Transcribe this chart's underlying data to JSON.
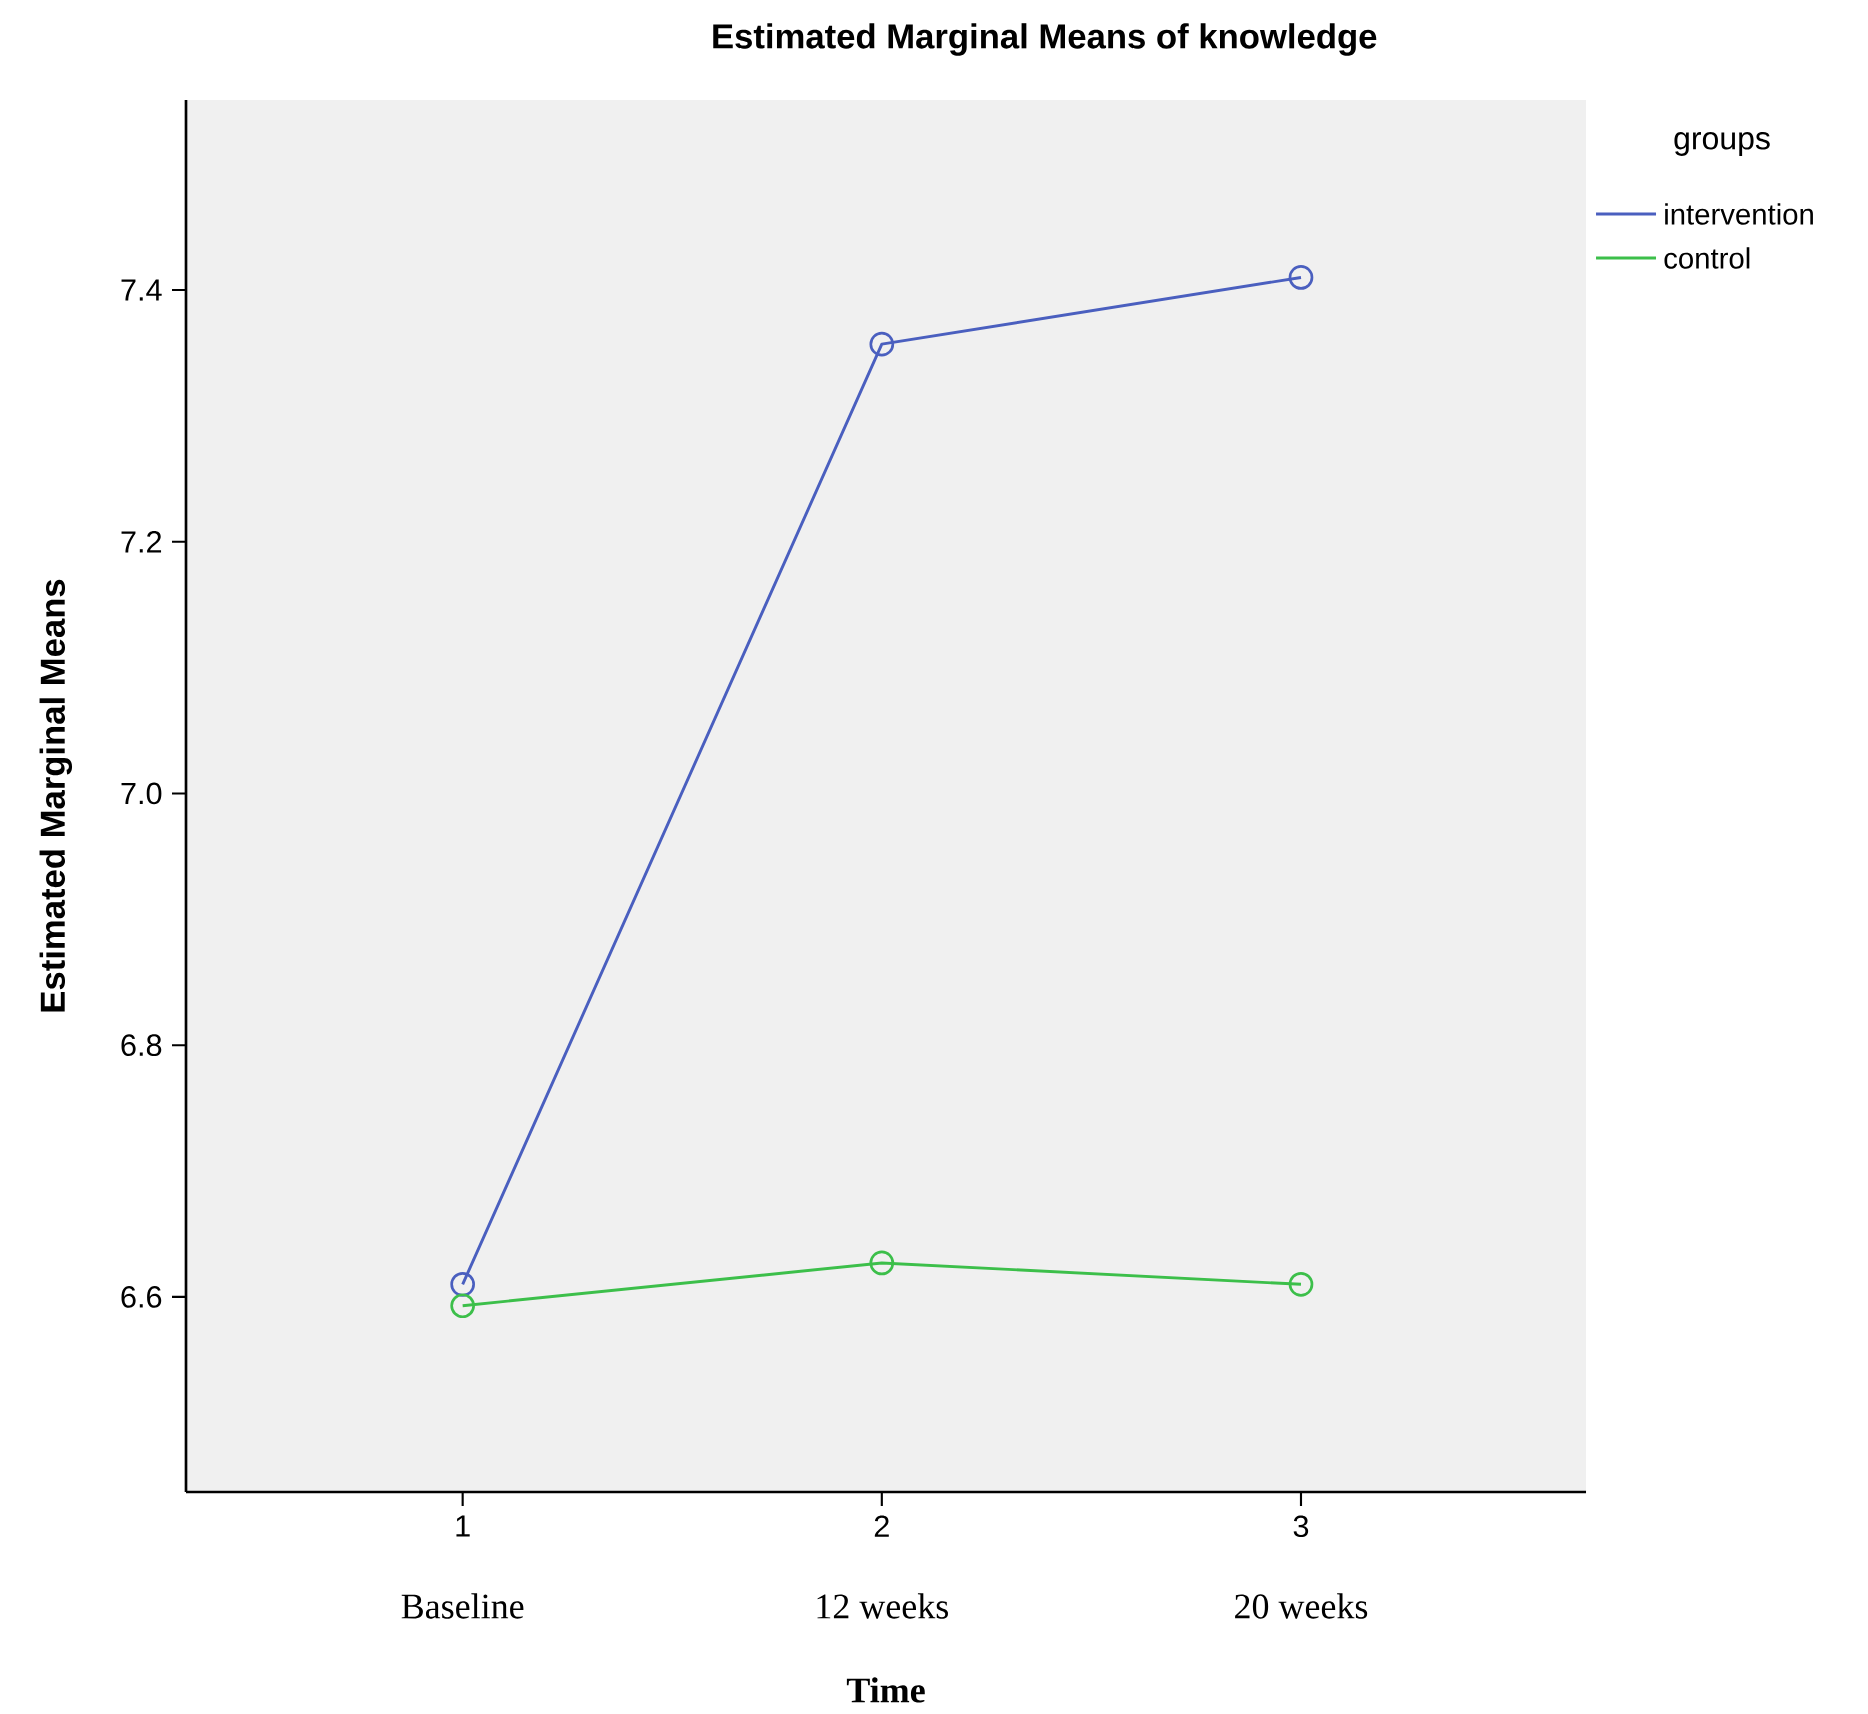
{
  "chart_data": {
    "type": "line",
    "title": "Estimated Marginal Means of knowledge",
    "xlabel": "Time",
    "ylabel": "Estimated Marginal Means",
    "legend_title": "groups",
    "x": [
      1,
      2,
      3
    ],
    "series": [
      {
        "name": "intervention",
        "color": "#4a5fbf",
        "values": [
          6.61,
          7.357,
          7.41
        ]
      },
      {
        "name": "control",
        "color": "#3cbf4a",
        "values": [
          6.593,
          6.627,
          6.61
        ]
      }
    ],
    "xlim": [
      0.34,
      3.68
    ],
    "xticks": [
      1,
      2,
      3
    ],
    "ylim": [
      6.445,
      7.551
    ],
    "yticks": [
      6.6,
      6.8,
      {
        "value": 7.0,
        "label": "7.0"
      },
      7.2,
      7.4
    ],
    "annotations": [
      "Baseline",
      "12 weeks",
      "20 weeks"
    ],
    "grid": false,
    "legend": "top right",
    "marker": "circle",
    "line_style": "solid"
  }
}
